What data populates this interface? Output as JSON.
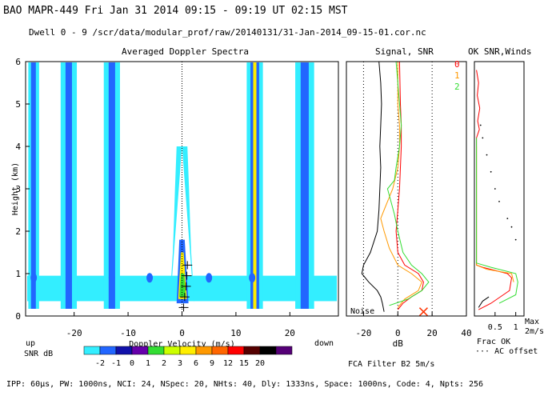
{
  "header": {
    "line1": "BAO  MAPR-449  Fri Jan 31 2014 09:15 - 09:19 UT 02:15 MST",
    "line2": "Dwell  0 -  9  /scr/data/modular_prof/raw/20140131/31-Jan-2014_09-15-01.cor.nc"
  },
  "panels": {
    "spectra_title": "Averaged Doppler Spectra",
    "signal_title": "Signal, SNR",
    "ok_title": "OK SNR,Winds",
    "noise_label": "Noise",
    "up_label": "up",
    "down_label": "down",
    "snr_db_label": "SNR dB",
    "fca_label": "FCA Filter B2  5m/s",
    "frac_ok_label": "Frac OK",
    "ac_offset_label": "··· AC offset",
    "max_label": "Max",
    "max_value": "2m/s",
    "footer": "IPP: 60μs, PW: 1000ns, NCI: 24, NSpec: 20, NHts: 40, Dly: 1333ns, Space: 1000ns, Code: 4, Npts: 256"
  },
  "colors": {
    "cyan": "#33eeff",
    "blue": "#2266ff",
    "dblue": "#1111aa",
    "purple": "#6600aa",
    "green": "#33dd33",
    "lgreen": "#ccff00",
    "yellow": "#ffee00",
    "orange": "#ff9900",
    "dorange": "#ff6600",
    "red": "#ff0000",
    "dred": "#550000",
    "black": "#000000",
    "violet": "#550077"
  },
  "chart_data": [
    {
      "type": "heatmap",
      "title": "Averaged Doppler Spectra",
      "xlabel": "Doppler Velocity (m/s)",
      "ylabel": "Height (km)",
      "xlim": [
        -29,
        29
      ],
      "ylim": [
        0,
        6
      ],
      "xticks": [
        -20,
        -10,
        0,
        10,
        20
      ],
      "yticks": [
        0,
        1,
        2,
        3,
        4,
        5,
        6
      ],
      "bands": [
        {
          "x0": -28.5,
          "x1": -26.5,
          "color": "cyan"
        },
        {
          "x0": -28.0,
          "x1": -27.1,
          "color": "blue"
        },
        {
          "x0": -22.5,
          "x1": -19.5,
          "color": "cyan"
        },
        {
          "x0": -21.6,
          "x1": -20.4,
          "color": "blue"
        },
        {
          "x0": -14.5,
          "x1": -11.5,
          "color": "cyan"
        },
        {
          "x0": -13.6,
          "x1": -12.4,
          "color": "blue"
        },
        {
          "x0": 12.0,
          "x1": 15.0,
          "color": "cyan"
        },
        {
          "x0": 12.7,
          "x1": 14.3,
          "color": "blue"
        },
        {
          "x0": 13.2,
          "x1": 13.8,
          "color": "yellow"
        },
        {
          "x0": 21.0,
          "x1": 24.5,
          "color": "cyan"
        },
        {
          "x0": 22.0,
          "x1": 23.5,
          "color": "blue"
        }
      ],
      "surface_layer": {
        "y0": 0.35,
        "y1": 0.95
      },
      "center_plume": [
        [
          0.3,
          2.2
        ],
        [
          0.9,
          2.0
        ],
        [
          1.5,
          1.7
        ],
        [
          2.2,
          1.5
        ],
        [
          3.0,
          1.3
        ],
        [
          4.0,
          1.0
        ]
      ],
      "wind_marks": [
        [
          0.2,
          0.3
        ],
        [
          0.45,
          0.5
        ],
        [
          0.7,
          0.75
        ],
        [
          0.95,
          0.9
        ],
        [
          1.2,
          1.0
        ]
      ]
    },
    {
      "type": "line",
      "title": "Signal, SNR",
      "xlabel": "dB",
      "xlim": [
        -30,
        40
      ],
      "ylim": [
        0,
        6
      ],
      "xticks": [
        -20,
        0,
        20,
        40
      ],
      "series": [
        {
          "name": "Noise",
          "color": "black",
          "points": [
            [
              -11,
              6.0
            ],
            [
              -10,
              5.5
            ],
            [
              -9.5,
              5.0
            ],
            [
              -10,
              4.5
            ],
            [
              -10.5,
              4.0
            ],
            [
              -10,
              3.5
            ],
            [
              -10.5,
              3.0
            ],
            [
              -11,
              2.5
            ],
            [
              -12,
              2.0
            ],
            [
              -16,
              1.5
            ],
            [
              -20,
              1.2
            ],
            [
              -21,
              1.0
            ],
            [
              -17,
              0.8
            ],
            [
              -12,
              0.6
            ],
            [
              -10,
              0.45
            ],
            [
              -9,
              0.3
            ],
            [
              -8,
              0.1
            ]
          ]
        },
        {
          "name": "0",
          "color": "red",
          "points": [
            [
              1,
              6.0
            ],
            [
              1.5,
              5.0
            ],
            [
              2,
              4.5
            ],
            [
              2,
              4.0
            ],
            [
              1.5,
              3.5
            ],
            [
              1,
              3.0
            ],
            [
              0,
              2.5
            ],
            [
              -1,
              2.0
            ],
            [
              0,
              1.5
            ],
            [
              4,
              1.2
            ],
            [
              12,
              1.0
            ],
            [
              15,
              0.8
            ],
            [
              14,
              0.6
            ],
            [
              8,
              0.45
            ],
            [
              3,
              0.3
            ],
            [
              0,
              0.15
            ]
          ]
        },
        {
          "name": "1",
          "color": "orange",
          "points": [
            [
              0,
              6.0
            ],
            [
              0,
              5.0
            ],
            [
              1,
              4.5
            ],
            [
              1,
              4.0
            ],
            [
              0,
              3.5
            ],
            [
              -3,
              3.0
            ],
            [
              -6,
              2.7
            ],
            [
              -8,
              2.5
            ],
            [
              -10,
              2.3
            ],
            [
              -8,
              2.0
            ],
            [
              -5,
              1.6
            ],
            [
              0,
              1.2
            ],
            [
              8,
              1.0
            ],
            [
              14,
              0.8
            ],
            [
              12,
              0.6
            ],
            [
              4,
              0.4
            ],
            [
              0,
              0.2
            ]
          ]
        },
        {
          "name": "2",
          "color": "green",
          "points": [
            [
              -1,
              6.0
            ],
            [
              0,
              5.5
            ],
            [
              1,
              5.0
            ],
            [
              2,
              4.5
            ],
            [
              1,
              4.0
            ],
            [
              -1,
              3.5
            ],
            [
              -2,
              3.2
            ],
            [
              -6,
              3.0
            ],
            [
              -4,
              2.7
            ],
            [
              -2,
              2.4
            ],
            [
              0,
              2.0
            ],
            [
              3,
              1.5
            ],
            [
              8,
              1.2
            ],
            [
              14,
              1.0
            ],
            [
              18,
              0.8
            ],
            [
              14,
              0.6
            ],
            [
              6,
              0.4
            ],
            [
              -5,
              0.25
            ]
          ]
        }
      ],
      "x_marker": {
        "x": 15,
        "y": 0.1
      },
      "legend": [
        "0",
        "1",
        "2"
      ]
    },
    {
      "type": "line",
      "title": "OK SNR,Winds",
      "xlabel": "Frac OK",
      "xlim": [
        0,
        1.2
      ],
      "ylim": [
        0,
        6
      ],
      "xticks": [
        0.5,
        1
      ],
      "series": [
        {
          "name": "0",
          "color": "red",
          "points": [
            [
              0.05,
              5.8
            ],
            [
              0.1,
              5.5
            ],
            [
              0.07,
              5.2
            ],
            [
              0.13,
              4.9
            ],
            [
              0.08,
              4.6
            ],
            [
              0.12,
              4.4
            ],
            [
              0.05,
              4.2
            ],
            [
              0.05,
              1.2
            ],
            [
              0.2,
              1.15
            ],
            [
              0.8,
              1.0
            ],
            [
              0.9,
              0.9
            ],
            [
              0.85,
              0.6
            ],
            [
              0.4,
              0.3
            ],
            [
              0.1,
              0.15
            ]
          ]
        },
        {
          "name": "1",
          "color": "orange",
          "points": [
            [
              0.05,
              4.0
            ],
            [
              0.05,
              1.2
            ],
            [
              0.3,
              1.1
            ],
            [
              0.9,
              1.0
            ],
            [
              0.95,
              0.8
            ]
          ]
        },
        {
          "name": "2",
          "color": "green",
          "points": [
            [
              0.05,
              4.2
            ],
            [
              0.05,
              1.25
            ],
            [
              0.4,
              1.15
            ],
            [
              1.0,
              1.0
            ],
            [
              1.05,
              0.8
            ],
            [
              1.0,
              0.5
            ],
            [
              0.6,
              0.3
            ]
          ]
        },
        {
          "name": "black",
          "color": "black",
          "points": [
            [
              0.35,
              0.45
            ],
            [
              0.2,
              0.35
            ],
            [
              0.1,
              0.2
            ]
          ]
        }
      ],
      "dots": [
        [
          0.15,
          4.5
        ],
        [
          0.2,
          4.2
        ],
        [
          0.3,
          3.8
        ],
        [
          0.4,
          3.4
        ],
        [
          0.5,
          3.0
        ],
        [
          0.6,
          2.7
        ],
        [
          0.8,
          2.3
        ],
        [
          0.9,
          2.1
        ],
        [
          1.0,
          1.8
        ]
      ]
    }
  ],
  "colorbar": {
    "ticks": [
      "-2",
      "-1",
      "0",
      "1",
      "2",
      "3",
      "6",
      "9",
      "12",
      "15",
      "20"
    ],
    "colors": [
      "cyan",
      "blue",
      "dblue",
      "purple",
      "green",
      "lgreen",
      "yellow",
      "orange",
      "dorange",
      "red",
      "dred",
      "black",
      "violet"
    ]
  }
}
